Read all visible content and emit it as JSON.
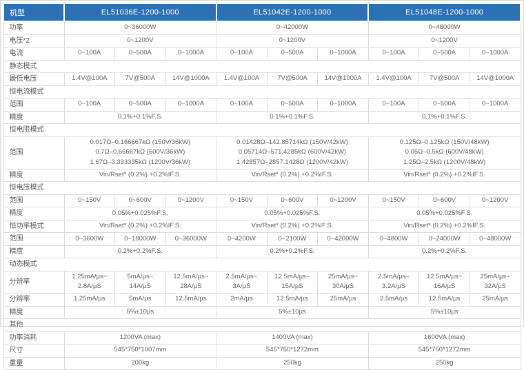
{
  "colors": {
    "header_bg": "#2d70b3",
    "header_text": "#ffffff",
    "body_text": "#606060",
    "border": "#dcdcdc"
  },
  "table": {
    "header": {
      "label": "机型",
      "models": [
        "EL51036E-1200-1000",
        "EL51042E-1200-1000",
        "EL51048E-1200-1000"
      ]
    },
    "rows": [
      {
        "type": "data",
        "label": "功率",
        "cells": [
          {
            "text": "0~36000W",
            "span": 3
          },
          {
            "text": "0~42000W",
            "span": 3
          },
          {
            "text": "0~48000W",
            "span": 3
          }
        ]
      },
      {
        "type": "data",
        "label": "电压*2",
        "cells": [
          {
            "text": "0~1200V",
            "span": 3
          },
          {
            "text": "0~1200V",
            "span": 3
          },
          {
            "text": "0~1200V",
            "span": 3
          }
        ]
      },
      {
        "type": "data",
        "label": "电流",
        "cells": [
          {
            "text": "0~100A",
            "span": 1
          },
          {
            "text": "0~500A",
            "span": 1
          },
          {
            "text": "0~1000A",
            "span": 1
          },
          {
            "text": "0~100A",
            "span": 1
          },
          {
            "text": "0~500A",
            "span": 1
          },
          {
            "text": "0~1000A",
            "span": 1
          },
          {
            "text": "0~100A",
            "span": 1
          },
          {
            "text": "0~500A",
            "span": 1
          },
          {
            "text": "0~1000A",
            "span": 1
          }
        ]
      },
      {
        "type": "section",
        "label": "静态模式"
      },
      {
        "type": "data",
        "label": "最低电压",
        "cells": [
          {
            "text": "1.4V@100A",
            "span": 1
          },
          {
            "text": "7V@500A",
            "span": 1
          },
          {
            "text": "14V@1000A",
            "span": 1
          },
          {
            "text": "1.4V@100A",
            "span": 1
          },
          {
            "text": "7V@500A",
            "span": 1
          },
          {
            "text": "14V@1000A",
            "span": 1
          },
          {
            "text": "1.4V@100A",
            "span": 1
          },
          {
            "text": "7V@500A",
            "span": 1
          },
          {
            "text": "14V@1000A",
            "span": 1
          }
        ]
      },
      {
        "type": "section",
        "label": "恒电流模式"
      },
      {
        "type": "data",
        "label": "范围",
        "cells": [
          {
            "text": "0~100A",
            "span": 1
          },
          {
            "text": "0~500A",
            "span": 1
          },
          {
            "text": "0~1000A",
            "span": 1
          },
          {
            "text": "0~100A",
            "span": 1
          },
          {
            "text": "0~500A",
            "span": 1
          },
          {
            "text": "0~1000A",
            "span": 1
          },
          {
            "text": "0~100A",
            "span": 1
          },
          {
            "text": "0~500A",
            "span": 1
          },
          {
            "text": "0~1000A",
            "span": 1
          }
        ]
      },
      {
        "type": "data",
        "label": "精度",
        "cells": [
          {
            "text": "0.1%+0.1%F.S.",
            "span": 3
          },
          {
            "text": "0.1%+0.1%F.S.",
            "span": 3
          },
          {
            "text": "0.1%+0.1%F.S.",
            "span": 3
          }
        ]
      },
      {
        "type": "section",
        "label": "恒电阻模式"
      },
      {
        "type": "data",
        "label": "范围",
        "cells": [
          {
            "text": "0.017Ω–0.166667kΩ (150V/36kW)\n0.7Ω–0.66667kΩ (600V/36kW)\n1.67Ω–3.333335kΩ (1200V/36kW)",
            "span": 3
          },
          {
            "text": "0.01428Ω–142.85714kΩ (150V/42kW)\n0.05714Ω–571.4285kΩ (600V/42kW)\n1.42857Ω–2857.1428Ω (1200V/42kW)",
            "span": 3
          },
          {
            "text": "0.125Ω–0.125kΩ (150V/48kW)\n0.05Ω–0.5kΩ (600V/48kW)\n1.25Ω–2.5kΩ (1200V/48kW)",
            "span": 3
          }
        ]
      },
      {
        "type": "data",
        "label": "精度",
        "cells": [
          {
            "text": "Vin/Rset* (0.2%) +0.2%IF.S.",
            "span": 3
          },
          {
            "text": "Vin/Rset* (0.2%) +0.2%IF.S.",
            "span": 3
          },
          {
            "text": "Vin/Rset* (0.2%) +0.2%IF.S.",
            "span": 3
          }
        ]
      },
      {
        "type": "section",
        "label": "恒电压模式"
      },
      {
        "type": "data",
        "label": "范围",
        "cells": [
          {
            "text": "0~150V",
            "span": 1
          },
          {
            "text": "0~600V",
            "span": 1
          },
          {
            "text": "0~1200V",
            "span": 1
          },
          {
            "text": "0~150V",
            "span": 1
          },
          {
            "text": "0~600V",
            "span": 1
          },
          {
            "text": "0~1200V",
            "span": 1
          },
          {
            "text": "0~150V",
            "span": 1
          },
          {
            "text": "0~600V",
            "span": 1
          },
          {
            "text": "0~1200V",
            "span": 1
          }
        ]
      },
      {
        "type": "data",
        "label": "精度",
        "cells": [
          {
            "text": "0.05%+0.025%F.S.",
            "span": 3
          },
          {
            "text": "0.05%+0.025%F.S.",
            "span": 3
          },
          {
            "text": "0.05%+0.025%F.S.",
            "span": 3
          }
        ]
      },
      {
        "type": "data",
        "label": "恒功率模式",
        "cells": [
          {
            "text": "Vin/Rset* (0.2%) +0.2%IF.S.",
            "span": 3
          },
          {
            "text": "Vin/Rset* (0.2%) +0.2%IF.S.",
            "span": 3
          },
          {
            "text": "Vin/Rset* (0.2%) +0.2%IF.S.",
            "span": 3
          }
        ]
      },
      {
        "type": "data",
        "label": "范围",
        "cells": [
          {
            "text": "0~3600W",
            "span": 1
          },
          {
            "text": "0~18000W",
            "span": 1
          },
          {
            "text": "0~36000W",
            "span": 1
          },
          {
            "text": "0~4200W",
            "span": 1
          },
          {
            "text": "0~2100W",
            "span": 1
          },
          {
            "text": "0~42000W",
            "span": 1
          },
          {
            "text": "0~4800W",
            "span": 1
          },
          {
            "text": "0~24000W",
            "span": 1
          },
          {
            "text": "0~48000W",
            "span": 1
          }
        ]
      },
      {
        "type": "data",
        "label": "精度",
        "cells": [
          {
            "text": "0.2%+0.2%F.S.",
            "span": 3
          },
          {
            "text": "0.2%+0.2%F.S.",
            "span": 3
          },
          {
            "text": "0.2%+0.2%F.S.",
            "span": 3
          }
        ]
      },
      {
        "type": "section",
        "label": "动态模式"
      },
      {
        "type": "data",
        "label": "分辨率",
        "cells": [
          {
            "text": "1.25mA/µs~\n2.8A/µS",
            "span": 1
          },
          {
            "text": "5mA/µs~\n14A/µS",
            "span": 1
          },
          {
            "text": "12.5mA/µs~\n28A/µS",
            "span": 1
          },
          {
            "text": "2.5mA/µs~\n3A/µS",
            "span": 1
          },
          {
            "text": "12.5mA/µs~\n15A/µS",
            "span": 1
          },
          {
            "text": "25mA/µs~\n30A/µS",
            "span": 1
          },
          {
            "text": "2.5mA/µs~\n3.2A/µS",
            "span": 1
          },
          {
            "text": "12.5mA/µs~\n16A/µS",
            "span": 1
          },
          {
            "text": "25mA/µs~\n32A/µS",
            "span": 1
          }
        ]
      },
      {
        "type": "data",
        "label": "分辨率",
        "cells": [
          {
            "text": "1.25mA/µs",
            "span": 1
          },
          {
            "text": "5mA/µs",
            "span": 1
          },
          {
            "text": "12.5mA/µs",
            "span": 1
          },
          {
            "text": "2mA/µs",
            "span": 1
          },
          {
            "text": "12.5mA/µs",
            "span": 1
          },
          {
            "text": "25mA/µs",
            "span": 1
          },
          {
            "text": "2.5mA/µs",
            "span": 1
          },
          {
            "text": "12.5mA/µs",
            "span": 1
          },
          {
            "text": "25mA/µs",
            "span": 1
          }
        ]
      },
      {
        "type": "data",
        "label": "精度",
        "cells": [
          {
            "text": "5%±10µs",
            "span": 3
          },
          {
            "text": "5%±10µs",
            "span": 3
          },
          {
            "text": "5%±10µs",
            "span": 3
          }
        ]
      },
      {
        "type": "section",
        "label": "其他"
      },
      {
        "type": "data",
        "compact": true,
        "label": "功率消耗",
        "cells": [
          {
            "text": "1200VA (max)",
            "span": 3
          },
          {
            "text": "1400VA (max)",
            "span": 3
          },
          {
            "text": "1600VA (max)",
            "span": 3
          }
        ]
      },
      {
        "type": "data",
        "compact": true,
        "label": "尺寸",
        "cells": [
          {
            "text": "545*750*1007mm",
            "span": 3
          },
          {
            "text": "545*750*1272mm",
            "span": 3
          },
          {
            "text": "545*750*1272mm",
            "span": 3
          }
        ]
      },
      {
        "type": "data",
        "compact": true,
        "label": "重量",
        "cells": [
          {
            "text": "200kg",
            "span": 3
          },
          {
            "text": "250kg",
            "span": 3
          },
          {
            "text": "250kg",
            "span": 3
          }
        ]
      }
    ]
  }
}
